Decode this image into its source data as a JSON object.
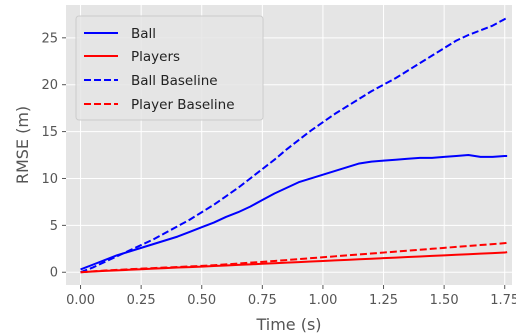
{
  "chart_data": {
    "type": "line",
    "title": "",
    "xlabel": "Time (s)",
    "ylabel": "RMSE (m)",
    "xlim": [
      -0.06,
      1.78
    ],
    "ylim": [
      -1.36,
      28.5
    ],
    "xticks": [
      "0.00",
      "0.25",
      "0.50",
      "0.75",
      "1.00",
      "1.25",
      "1.50",
      "1.75"
    ],
    "xtick_values": [
      0.0,
      0.25,
      0.5,
      0.75,
      1.0,
      1.25,
      1.5,
      1.75
    ],
    "yticks": [
      "0",
      "5",
      "10",
      "15",
      "20",
      "25"
    ],
    "ytick_values": [
      0,
      5,
      10,
      15,
      20,
      25
    ],
    "grid": true,
    "background": "#e5e5e5",
    "legend_position": "top-left",
    "x": [
      0.0,
      0.05,
      0.1,
      0.15,
      0.2,
      0.25,
      0.3,
      0.35,
      0.4,
      0.45,
      0.5,
      0.55,
      0.6,
      0.65,
      0.7,
      0.75,
      0.8,
      0.85,
      0.9,
      0.95,
      1.0,
      1.05,
      1.1,
      1.15,
      1.2,
      1.25,
      1.3,
      1.35,
      1.4,
      1.45,
      1.5,
      1.55,
      1.6,
      1.65,
      1.7,
      1.75,
      1.76
    ],
    "series": [
      {
        "name": "Ball",
        "color": "#0000ff",
        "dash": "solid",
        "values": [
          0.3,
          0.8,
          1.3,
          1.8,
          2.2,
          2.6,
          3.0,
          3.4,
          3.8,
          4.3,
          4.8,
          5.3,
          5.9,
          6.4,
          7.0,
          7.7,
          8.4,
          9.0,
          9.6,
          10.0,
          10.4,
          10.8,
          11.2,
          11.6,
          11.8,
          11.9,
          12.0,
          12.1,
          12.2,
          12.2,
          12.3,
          12.4,
          12.5,
          12.3,
          12.3,
          12.4,
          12.4
        ]
      },
      {
        "name": "Players",
        "color": "#ff0000",
        "dash": "solid",
        "values": [
          0.0,
          0.08,
          0.14,
          0.2,
          0.26,
          0.32,
          0.38,
          0.44,
          0.5,
          0.55,
          0.6,
          0.66,
          0.72,
          0.78,
          0.84,
          0.9,
          0.96,
          1.02,
          1.08,
          1.14,
          1.2,
          1.26,
          1.32,
          1.38,
          1.44,
          1.5,
          1.56,
          1.62,
          1.68,
          1.74,
          1.8,
          1.86,
          1.92,
          1.98,
          2.04,
          2.1,
          2.15
        ]
      },
      {
        "name": "Ball Baseline",
        "color": "#0000ff",
        "dash": "dashed",
        "values": [
          0.0,
          0.5,
          1.1,
          1.7,
          2.3,
          2.9,
          3.5,
          4.2,
          4.9,
          5.6,
          6.4,
          7.2,
          8.1,
          9.0,
          10.0,
          11.0,
          12.0,
          13.1,
          14.1,
          15.1,
          16.0,
          16.9,
          17.7,
          18.5,
          19.3,
          20.0,
          20.7,
          21.5,
          22.3,
          23.1,
          23.9,
          24.7,
          25.3,
          25.8,
          26.3,
          27.0,
          27.1
        ]
      },
      {
        "name": "Player Baseline",
        "color": "#ff0000",
        "dash": "dashed",
        "values": [
          0.0,
          0.1,
          0.18,
          0.25,
          0.32,
          0.38,
          0.44,
          0.5,
          0.56,
          0.62,
          0.68,
          0.75,
          0.84,
          0.93,
          1.02,
          1.11,
          1.2,
          1.3,
          1.4,
          1.5,
          1.6,
          1.7,
          1.8,
          1.9,
          2.0,
          2.1,
          2.2,
          2.3,
          2.4,
          2.5,
          2.6,
          2.7,
          2.8,
          2.9,
          3.0,
          3.1,
          3.15
        ]
      }
    ]
  }
}
